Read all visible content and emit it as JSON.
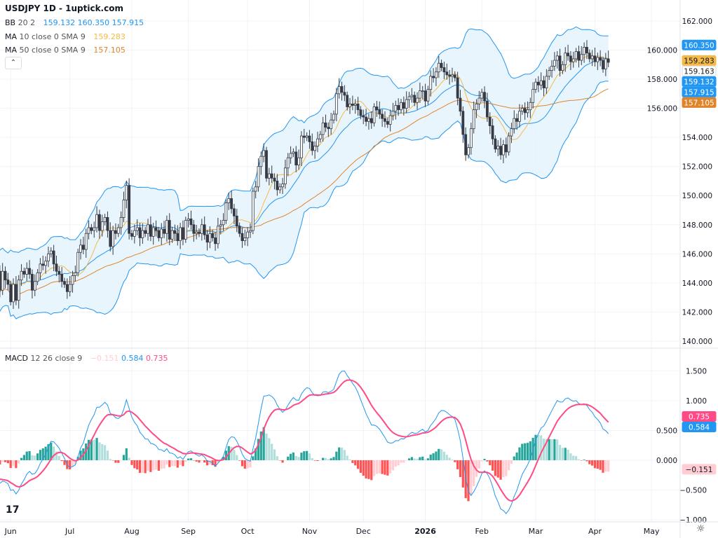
{
  "header": {
    "title": "USDJPY 1D - 1uptick.com"
  },
  "legend": {
    "bb": {
      "label": "BB",
      "params": "20 2",
      "values": [
        "159.132",
        "160.350",
        "157.915"
      ]
    },
    "ma10": {
      "label": "MA",
      "params": "10 close 0 SMA 9",
      "value": "159.283"
    },
    "ma50": {
      "label": "MA",
      "params": "50 close 0 SMA 9",
      "value": "157.105"
    },
    "macd": {
      "label": "MACD",
      "params": "12 26 close 9",
      "values": [
        "−0.151",
        "0.584",
        "0.735"
      ]
    }
  },
  "colors": {
    "bb": "#2196f3",
    "bb_fill": "#e3f2fd",
    "ma10": "#f5b94a",
    "ma50": "#e0842a",
    "macd": "#2196f3",
    "signal": "#ff4a86",
    "hist_up_strong": "#26a69a",
    "hist_up_weak": "#b2dfdb",
    "hist_down_strong": "#ff5252",
    "hist_down_weak": "#ffcdd2",
    "candle_up": "#ffffff",
    "candle_down": "#363a45"
  },
  "icons": {
    "collapse": "chevron-up-icon",
    "logo": "tradingview-logo",
    "settings": "gear-icon"
  },
  "chart_data": [
    {
      "type": "candlestick",
      "symbol": "USDJPY",
      "interval": "1D",
      "ylim": [
        139.5,
        163
      ],
      "y_ticks": [
        "162.000",
        "160.000",
        "158.000",
        "156.000",
        "154.000",
        "152.000",
        "150.000",
        "148.000",
        "146.000",
        "144.000",
        "142.000",
        "140.000"
      ],
      "x_ticks": [
        "Jun",
        "Jul",
        "Aug",
        "Sep",
        "Oct",
        "Nov",
        "Dec",
        "2026",
        "Feb",
        "Mar",
        "Apr",
        "May"
      ],
      "closes": [
        144.8,
        143.5,
        144.8,
        144.2,
        143.9,
        142.7,
        143.9,
        142.8,
        144.2,
        144.8,
        144.6,
        145.0,
        144.6,
        143.5,
        144.1,
        144.7,
        145.3,
        145.2,
        145.5,
        146.0,
        146.2,
        145.3,
        144.8,
        144.6,
        144.1,
        143.9,
        143.4,
        143.9,
        144.5,
        144.7,
        146.1,
        146.6,
        146.3,
        147.4,
        147.8,
        147.6,
        147.8,
        148.7,
        147.6,
        148.2,
        148.5,
        147.6,
        146.5,
        147.6,
        147.4,
        147.8,
        148.5,
        149.7,
        150.7,
        147.4,
        147.2,
        147.6,
        147.8,
        147.1,
        147.6,
        147.4,
        148.0,
        147.2,
        147.8,
        147.6,
        147.1,
        147.7,
        147.4,
        148.3,
        147.0,
        147.6,
        147.4,
        146.9,
        147.8,
        147.0,
        148.3,
        148.4,
        148.0,
        147.4,
        147.5,
        147.4,
        148.0,
        147.3,
        146.8,
        147.4,
        147.1,
        146.7,
        147.9,
        148.0,
        148.3,
        149.5,
        149.8,
        149.1,
        148.6,
        147.9,
        147.4,
        146.9,
        147.1,
        147.5,
        147.6,
        150.3,
        150.6,
        152.0,
        152.7,
        153.1,
        151.2,
        151.5,
        151.2,
        151.0,
        150.4,
        150.6,
        150.8,
        151.9,
        152.6,
        152.9,
        153.0,
        152.1,
        152.6,
        154.1,
        154.0,
        154.1,
        153.7,
        153.1,
        153.4,
        153.9,
        154.2,
        155.0,
        154.7,
        154.6,
        155.2,
        155.6,
        157.0,
        157.5,
        157.1,
        156.9,
        156.1,
        156.3,
        156.2,
        156.3,
        155.9,
        155.5,
        155.4,
        155.1,
        155.3,
        155.0,
        156.1,
        155.9,
        155.6,
        155.3,
        155.1,
        154.9,
        155.5,
        155.8,
        156.2,
        155.9,
        156.4,
        156.0,
        156.6,
        156.8,
        156.9,
        156.4,
        156.7,
        157.2,
        157.2,
        156.5,
        157.3,
        158.2,
        158.1,
        158.5,
        159.1,
        158.8,
        158.5,
        158.3,
        158.2,
        158.3,
        158.1,
        156.7,
        155.8,
        154.2,
        152.8,
        153.3,
        154.6,
        155.9,
        156.3,
        156.7,
        157.1,
        156.5,
        155.4,
        154.8,
        153.9,
        153.2,
        153.4,
        152.8,
        153.5,
        153.0,
        154.1,
        154.6,
        155.3,
        155.1,
        155.8,
        156.0,
        155.7,
        155.9,
        156.4,
        157.3,
        157.8,
        157.6,
        157.9,
        157.4,
        158.2,
        158.6,
        158.9,
        159.3,
        159.6,
        158.6,
        159.0,
        159.8,
        159.6,
        159.2,
        159.4,
        159.9,
        159.3,
        159.7,
        160.2,
        159.8,
        159.4,
        159.6,
        159.2,
        159.5,
        159.3,
        158.7,
        159.4,
        159.16
      ],
      "last_price": "159.163",
      "price_badges": [
        {
          "value": "160.350",
          "price": 160.35,
          "color": "#2196f3",
          "text": "#ffffff"
        },
        {
          "value": "159.283",
          "price": 159.283,
          "color": "#f5b94a",
          "text": "#131722"
        },
        {
          "value": "159.163",
          "price": 159.163,
          "color": "#ffffff",
          "text": "#131722"
        },
        {
          "value": "159.132",
          "price": 158.7,
          "color": "#2196f3",
          "text": "#ffffff"
        },
        {
          "value": "157.915",
          "price": 157.95,
          "color": "#2196f3",
          "text": "#ffffff"
        },
        {
          "value": "157.105",
          "price": 157.0,
          "color": "#e0842a",
          "text": "#ffffff"
        }
      ]
    },
    {
      "type": "macd",
      "ylim": [
        -1.02,
        1.7
      ],
      "y_ticks": [
        "1.500",
        "1.000",
        "0.500",
        "0.000",
        "−0.500",
        "−1.000"
      ],
      "y_tick_values": [
        1.5,
        1.0,
        0.5,
        0,
        -0.5,
        -1.0
      ],
      "badges": [
        {
          "value": "0.735",
          "price": 0.735,
          "color": "#ff4a86"
        },
        {
          "value": "0.584",
          "price": 0.584,
          "color": "#2196f3"
        },
        {
          "value": "−0.151",
          "price": -0.151,
          "color": "#ffcdd2",
          "text": "#131722"
        }
      ]
    }
  ]
}
